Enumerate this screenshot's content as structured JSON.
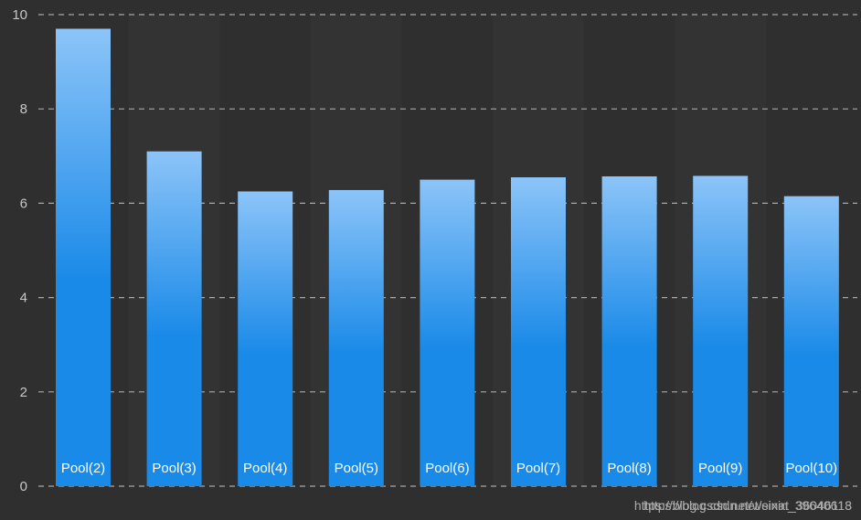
{
  "chart_data": {
    "type": "bar",
    "categories": [
      "Pool(2)",
      "Pool(3)",
      "Pool(4)",
      "Pool(5)",
      "Pool(6)",
      "Pool(7)",
      "Pool(8)",
      "Pool(9)",
      "Pool(10)"
    ],
    "values": [
      9.7,
      7.1,
      6.25,
      6.28,
      6.5,
      6.55,
      6.57,
      6.58,
      6.15
    ],
    "ylim": [
      0,
      10
    ],
    "yticks": [
      "0",
      "2",
      "4",
      "6",
      "8",
      "10"
    ],
    "grid": true,
    "colors": {
      "background": "#2f2f2f",
      "band_alt": "#333333",
      "bar_top": "#8cc4f8",
      "bar_bottom": "#1a8ae8",
      "grid": "#bdbdbd",
      "tick_text": "#c8c8c8",
      "label_text": "#ffffff"
    }
  },
  "watermark": {
    "text_a": "https://blog.csdn.net/weixin_39640618",
    "text_b": "https://blog.csdn.net/sinat_36046113"
  }
}
